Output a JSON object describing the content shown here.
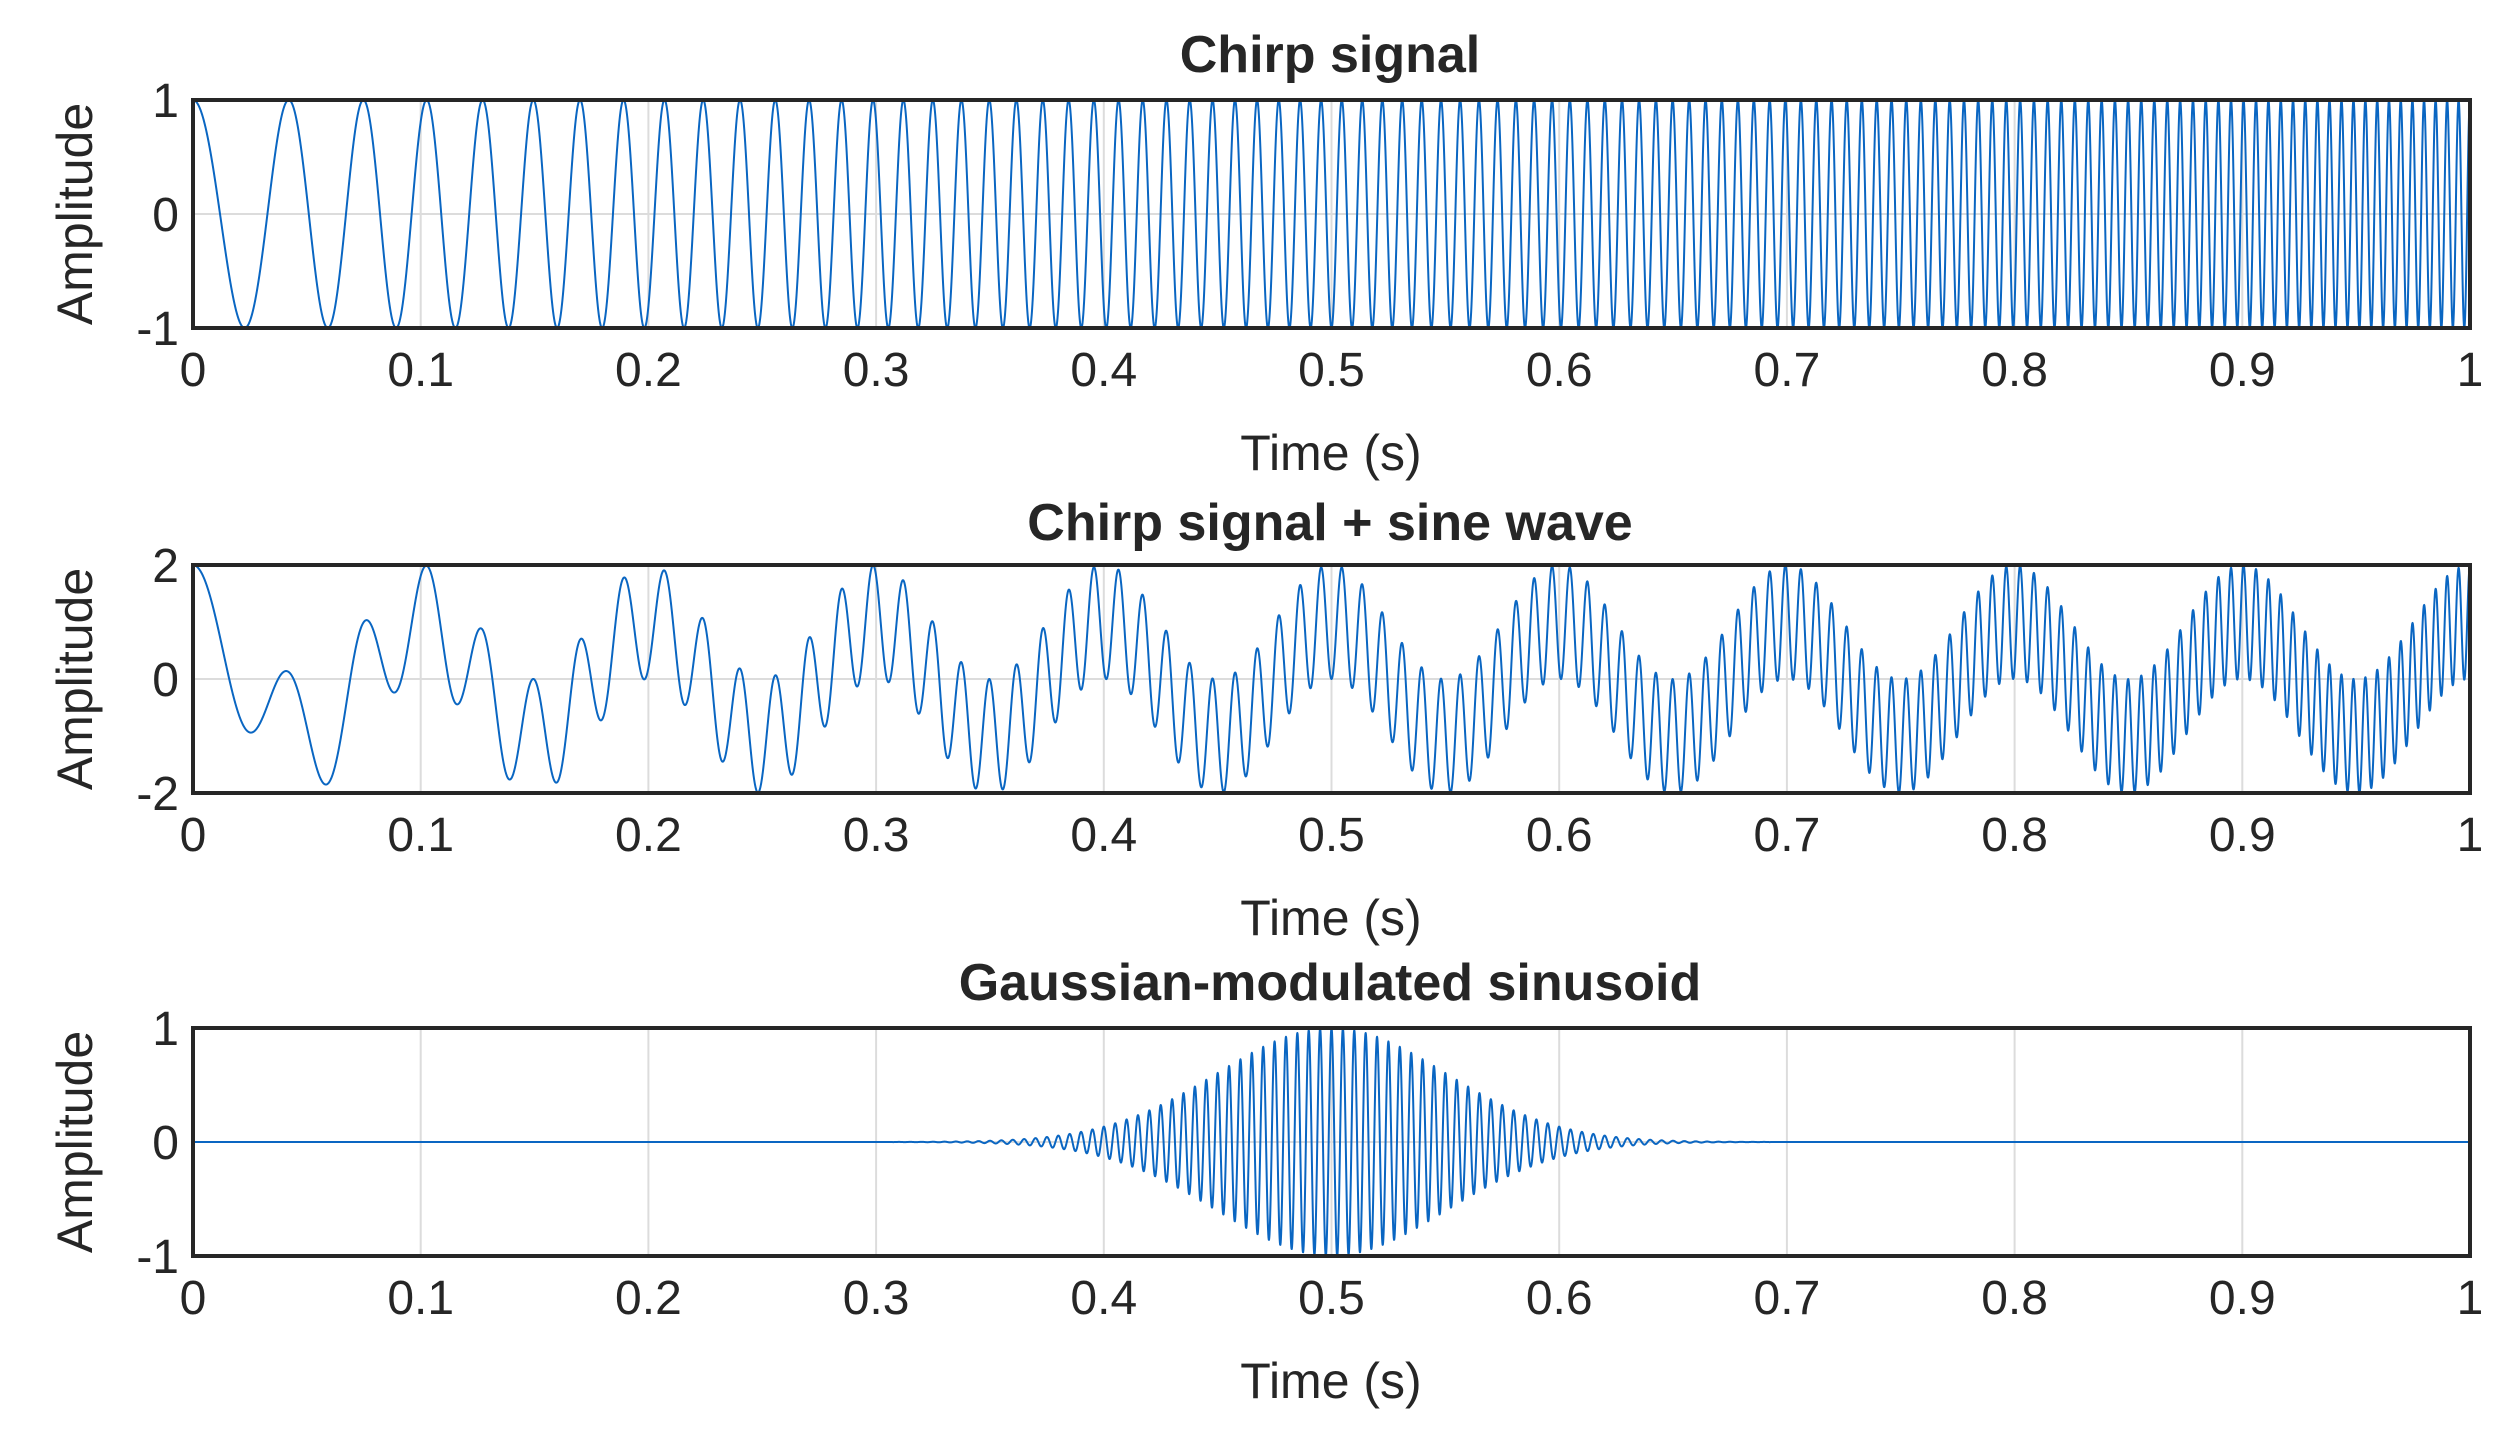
{
  "chart_data": [
    {
      "type": "line",
      "title": "Chirp signal",
      "xlabel": "Time (s)",
      "ylabel": "Amplitude",
      "xlim": [
        0,
        1
      ],
      "ylim": [
        -1,
        1
      ],
      "x_ticks": [
        "0",
        "0.1",
        "0.2",
        "0.3",
        "0.4",
        "0.5",
        "0.6",
        "0.7",
        "0.8",
        "0.9",
        "1"
      ],
      "y_ticks": [
        "-1",
        "0",
        "1"
      ],
      "grid": true,
      "signal": {
        "kind": "chirp",
        "f0_hz": 20,
        "f1_hz": 200,
        "t1_s": 1,
        "amplitude": 1
      }
    },
    {
      "type": "line",
      "title": "Chirp signal + sine wave",
      "xlabel": "Time (s)",
      "ylabel": "Amplitude",
      "xlim": [
        0,
        1
      ],
      "ylim": [
        -2,
        2
      ],
      "x_ticks": [
        "0",
        "0.1",
        "0.2",
        "0.3",
        "0.4",
        "0.5",
        "0.6",
        "0.7",
        "0.8",
        "0.9",
        "1"
      ],
      "y_ticks": [
        "-2",
        "0",
        "2"
      ],
      "grid": true,
      "signal": {
        "kind": "chirp_plus_sine",
        "f0_hz": 20,
        "f1_hz": 200,
        "t1_s": 1,
        "sine_hz": 10,
        "amplitude": 1
      }
    },
    {
      "type": "line",
      "title": "Gaussian-modulated sinusoid",
      "xlabel": "Time (s)",
      "ylabel": "Amplitude",
      "xlim": [
        0,
        1
      ],
      "ylim": [
        -1,
        1
      ],
      "x_ticks": [
        "0",
        "0.1",
        "0.2",
        "0.3",
        "0.4",
        "0.5",
        "0.6",
        "0.7",
        "0.8",
        "0.9",
        "1"
      ],
      "y_ticks": [
        "-1",
        "0",
        "1"
      ],
      "grid": true,
      "signal": {
        "kind": "gaussian_modulated",
        "center_s": 0.5,
        "carrier_hz": 200,
        "sigma_s": 0.05,
        "amplitude": 1
      }
    }
  ],
  "colors": {
    "trace": "#0a66c2",
    "axes": "#262626",
    "grid": "#dcdcdc"
  }
}
